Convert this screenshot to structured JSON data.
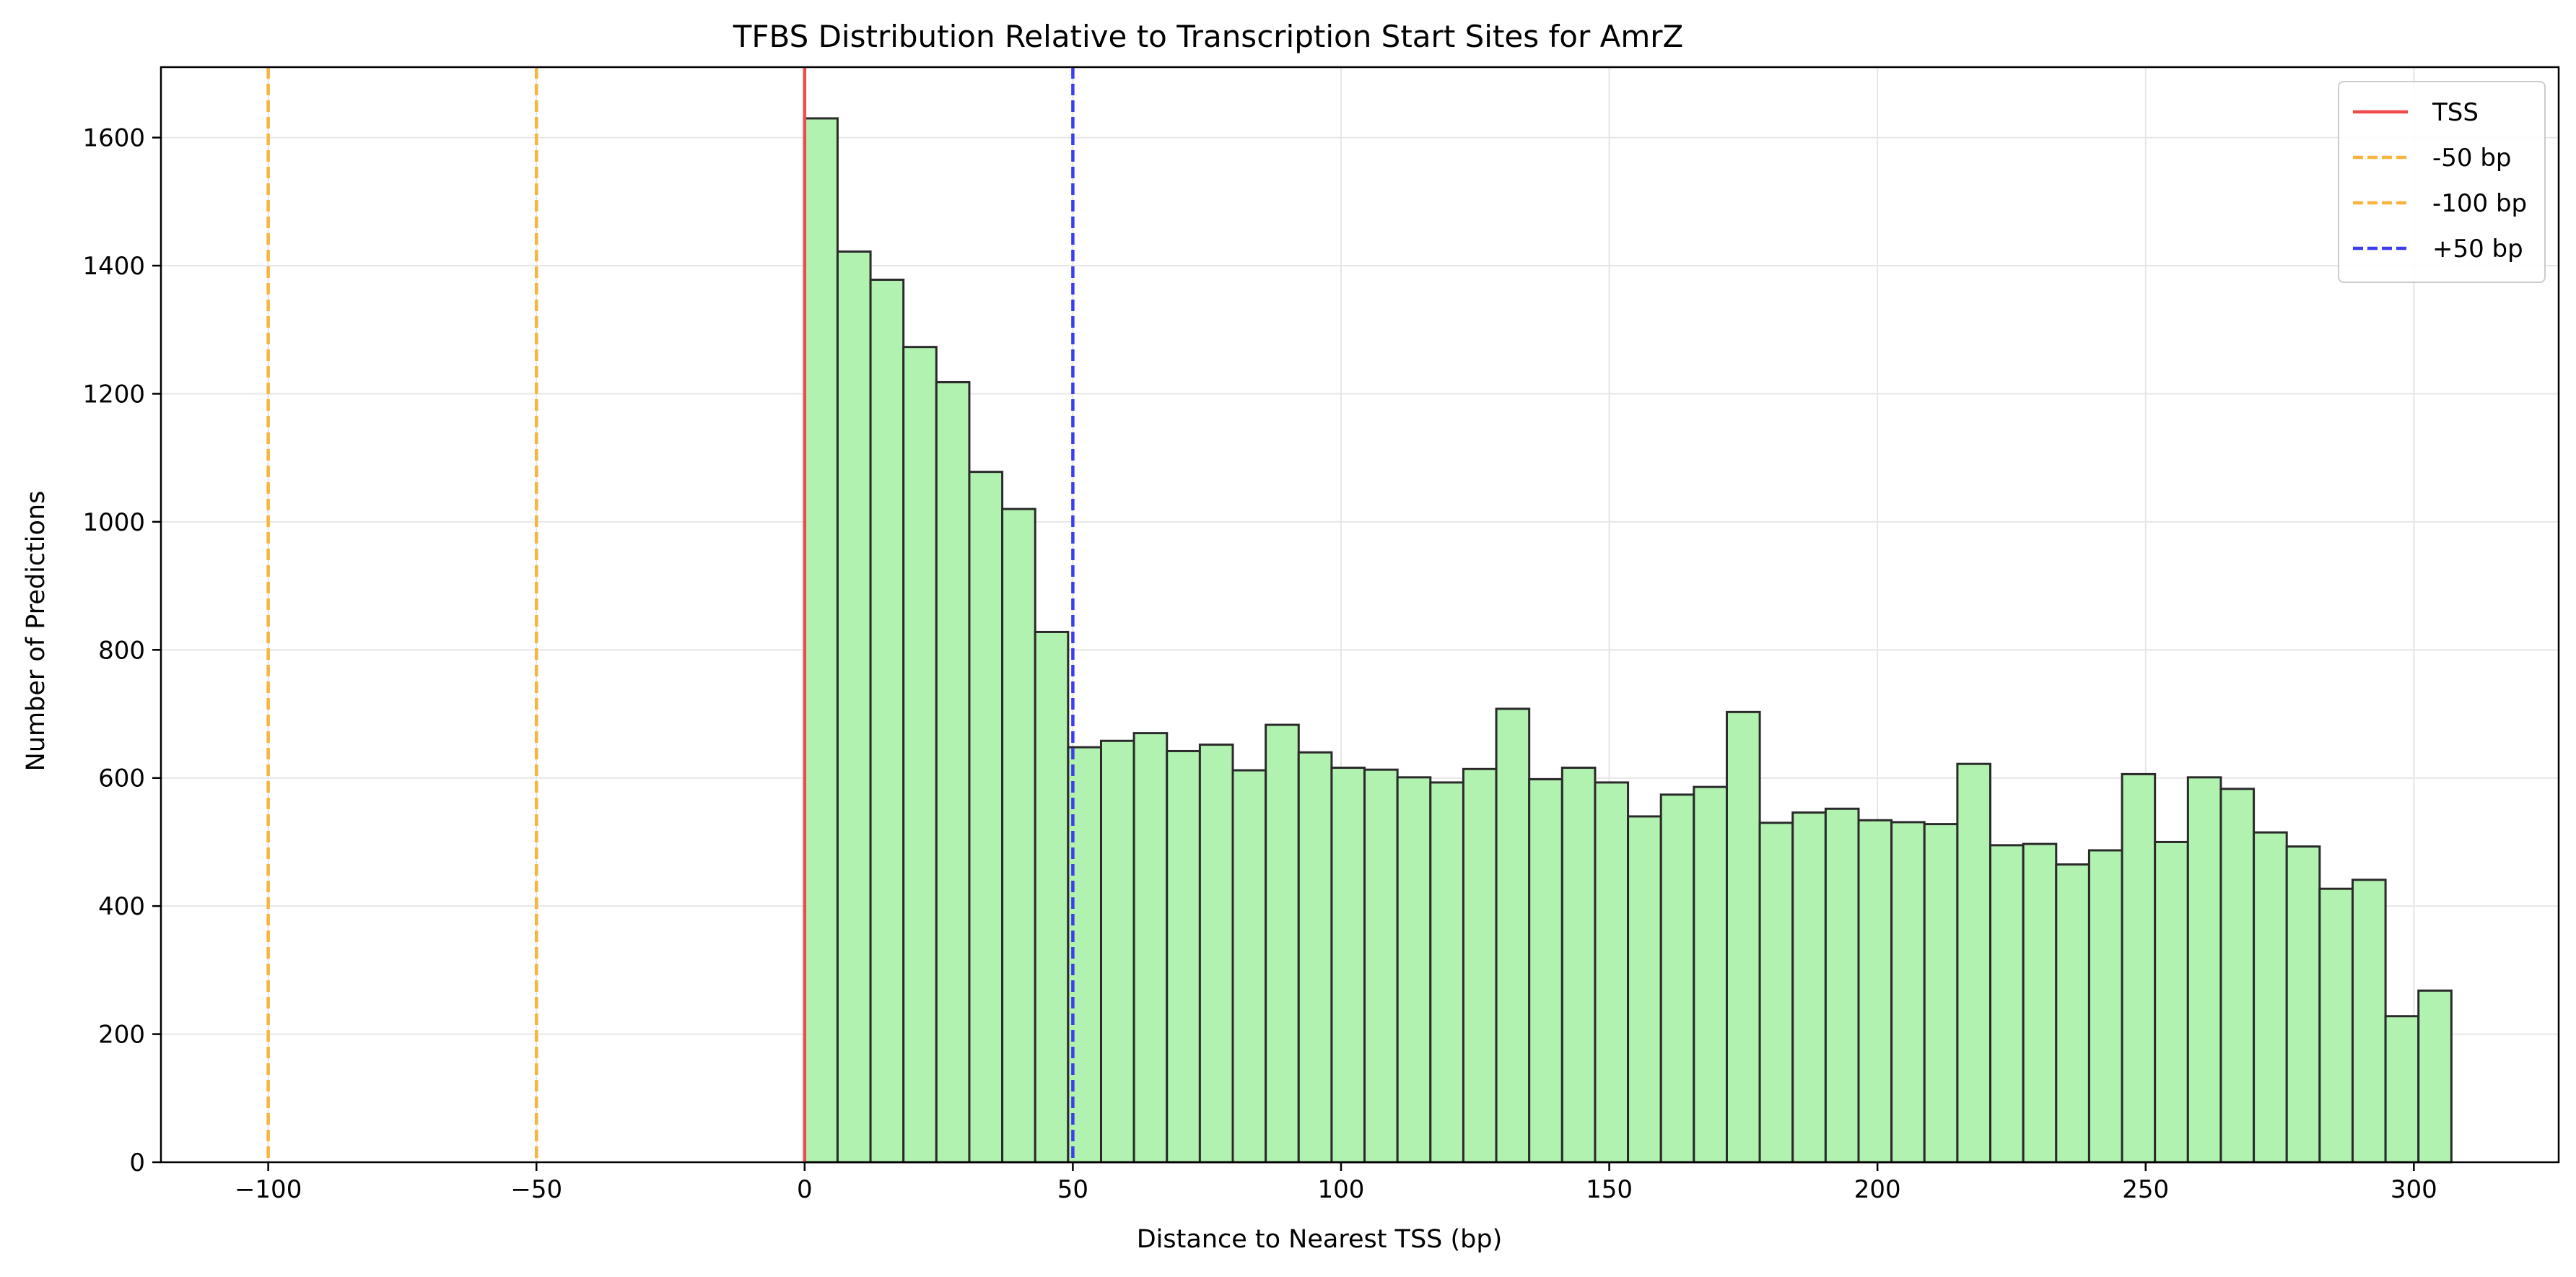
{
  "chart_data": {
    "type": "bar",
    "title": "TFBS Distribution Relative to Transcription Start Sites for AmrZ",
    "xlabel": "Distance to Nearest TSS (bp)",
    "ylabel": "Number of Predictions",
    "xlim": [
      -120,
      327
    ],
    "ylim": [
      0,
      1710
    ],
    "xticks": [
      -100,
      -50,
      0,
      50,
      100,
      150,
      200,
      250,
      300
    ],
    "xtick_labels": [
      "−100",
      "−50",
      "0",
      "50",
      "100",
      "150",
      "200",
      "250",
      "300"
    ],
    "yticks": [
      0,
      200,
      400,
      600,
      800,
      1000,
      1200,
      1400,
      1600
    ],
    "ytick_labels": [
      "0",
      "200",
      "400",
      "600",
      "800",
      "1000",
      "1200",
      "1400",
      "1600"
    ],
    "grid": true,
    "legend_position": "top-right",
    "bin_start": 0,
    "bin_width": 6.14,
    "values": [
      1630,
      1422,
      1378,
      1273,
      1218,
      1078,
      1020,
      828,
      648,
      658,
      670,
      642,
      652,
      612,
      683,
      640,
      616,
      613,
      601,
      593,
      614,
      708,
      598,
      616,
      593,
      540,
      574,
      586,
      703,
      530,
      546,
      552,
      534,
      531,
      528,
      622,
      495,
      497,
      465,
      487,
      606,
      500,
      601,
      583,
      515,
      493,
      427,
      441,
      228,
      268
    ],
    "bar_color": "#b2f2b0",
    "bar_edge_color": "#2a2a2a",
    "reference_lines": [
      {
        "label": "TSS",
        "x": 0,
        "color": "#f24a4a",
        "style": "solid"
      },
      {
        "label": "-50 bp",
        "x": -50,
        "color": "#f8b43c",
        "style": "dashed"
      },
      {
        "label": "-100 bp",
        "x": -100,
        "color": "#f8b43c",
        "style": "dashed"
      },
      {
        "label": "+50 bp",
        "x": 50,
        "color": "#3d3df0",
        "style": "dashed"
      }
    ]
  }
}
